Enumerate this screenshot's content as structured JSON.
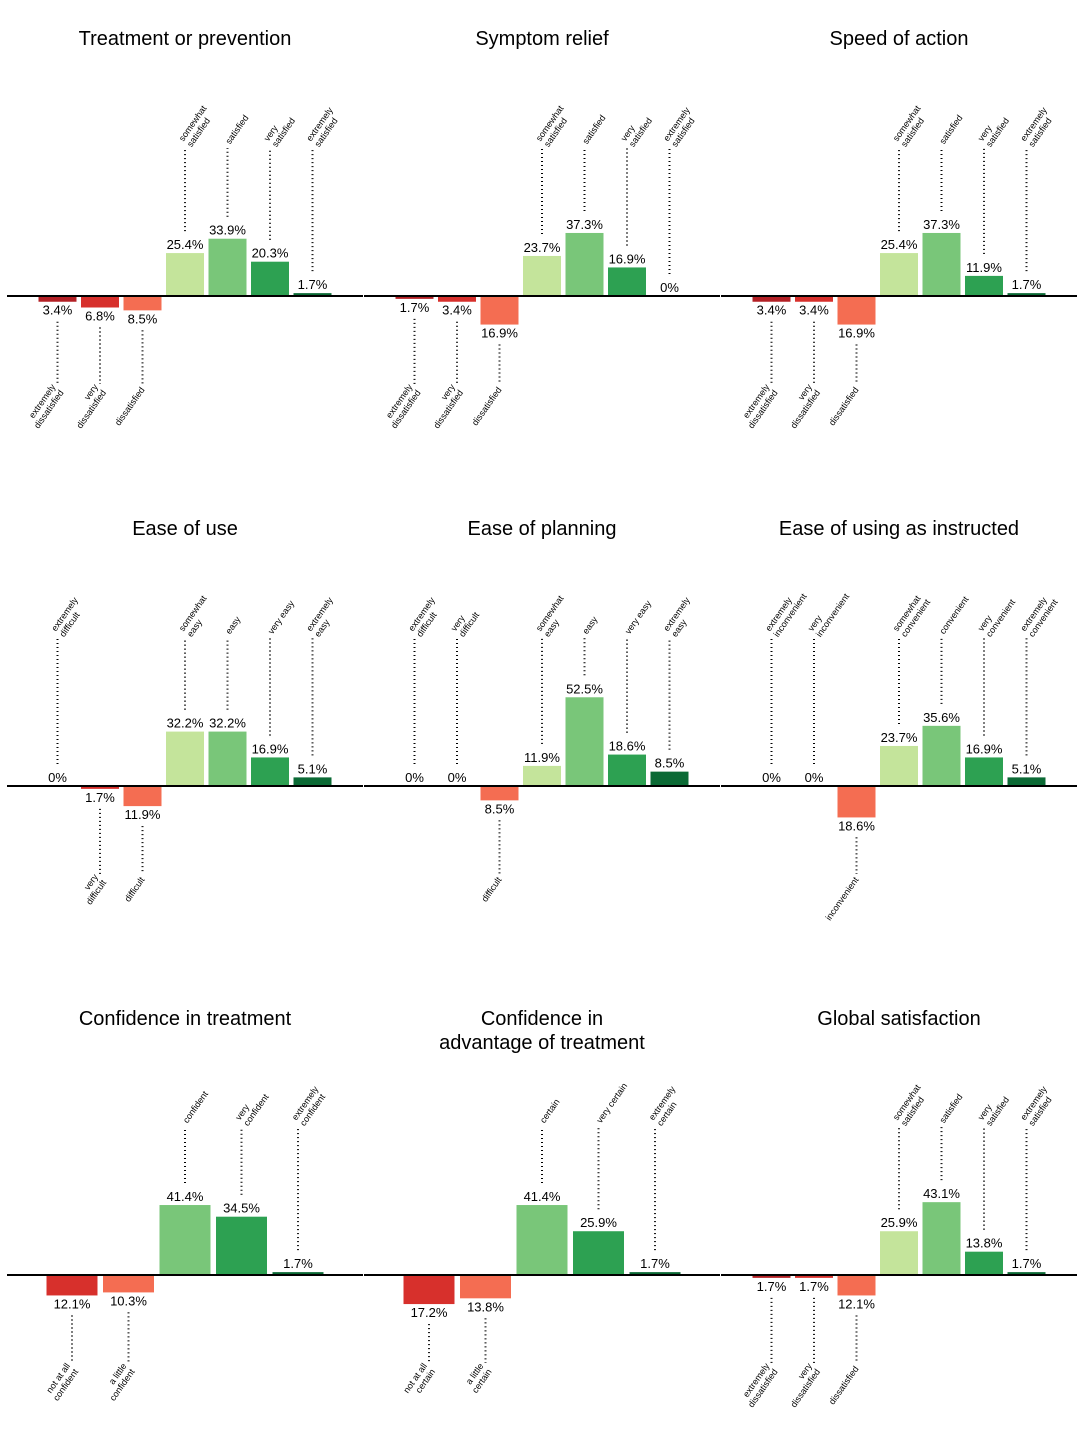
{
  "colors": {
    "dark_red": "#b32025",
    "red": "#d7302c",
    "orange": "#f46d52",
    "light_green": "#c4e49b",
    "green": "#79c679",
    "mid_green": "#2da152",
    "dark_green": "#0b6a35",
    "axis": "#000000"
  },
  "chart_data": [
    {
      "type": "bar",
      "title": [
        "Treatment or prevention"
      ],
      "ylim": [
        -20,
        55
      ],
      "categories": [
        [
          "extremely",
          "dissatisfied"
        ],
        [
          "very",
          "dissatisfied"
        ],
        [
          "dissatisfied"
        ],
        [
          "somewhat",
          "satisfied"
        ],
        [
          "satisfied"
        ],
        [
          "very",
          "satisfied"
        ],
        [
          "extremely",
          "satisfied"
        ]
      ],
      "values": [
        -3.4,
        -6.8,
        -8.5,
        25.4,
        33.9,
        20.3,
        1.7
      ],
      "labels": [
        "3.4%",
        "6.8%",
        "8.5%",
        "25.4%",
        "33.9%",
        "20.3%",
        "1.7%"
      ],
      "colors": [
        "#b32025",
        "#d7302c",
        "#f46d52",
        "#c4e49b",
        "#79c679",
        "#2da152",
        "#0b6a35"
      ]
    },
    {
      "type": "bar",
      "title": [
        "Symptom relief"
      ],
      "ylim": [
        -20,
        55
      ],
      "categories": [
        [
          "extremely",
          "dissatisfied"
        ],
        [
          "very",
          "dissatisfied"
        ],
        [
          "dissatisfied"
        ],
        [
          "somewhat",
          "satisfied"
        ],
        [
          "satisfied"
        ],
        [
          "very",
          "satisfied"
        ],
        [
          "extremely",
          "satisfied"
        ]
      ],
      "values": [
        -1.7,
        -3.4,
        -16.9,
        23.7,
        37.3,
        16.9,
        0
      ],
      "labels": [
        "1.7%",
        "3.4%",
        "16.9%",
        "23.7%",
        "37.3%",
        "16.9%",
        "0%"
      ],
      "colors": [
        "#b32025",
        "#d7302c",
        "#f46d52",
        "#c4e49b",
        "#79c679",
        "#2da152",
        "#0b6a35"
      ]
    },
    {
      "type": "bar",
      "title": [
        "Speed of action"
      ],
      "ylim": [
        -20,
        55
      ],
      "categories": [
        [
          "extremely",
          "dissatisfied"
        ],
        [
          "very",
          "dissatisfied"
        ],
        [
          "dissatisfied"
        ],
        [
          "somewhat",
          "satisfied"
        ],
        [
          "satisfied"
        ],
        [
          "very",
          "satisfied"
        ],
        [
          "extremely",
          "satisfied"
        ]
      ],
      "values": [
        -3.4,
        -3.4,
        -16.9,
        25.4,
        37.3,
        11.9,
        1.7
      ],
      "labels": [
        "3.4%",
        "3.4%",
        "16.9%",
        "25.4%",
        "37.3%",
        "11.9%",
        "1.7%"
      ],
      "colors": [
        "#b32025",
        "#d7302c",
        "#f46d52",
        "#c4e49b",
        "#79c679",
        "#2da152",
        "#0b6a35"
      ]
    },
    {
      "type": "bar",
      "title": [
        "Ease of use"
      ],
      "ylim": [
        -20,
        55
      ],
      "categories": [
        [
          "extremely",
          "difficult"
        ],
        [
          "very",
          "difficult"
        ],
        [
          "difficult"
        ],
        [
          "somewhat",
          "easy"
        ],
        [
          "easy"
        ],
        [
          "very easy"
        ],
        [
          "extremely",
          "easy"
        ]
      ],
      "values": [
        0,
        -1.7,
        -11.9,
        32.2,
        32.2,
        16.9,
        5.1
      ],
      "labels": [
        "0%",
        "1.7%",
        "11.9%",
        "32.2%",
        "32.2%",
        "16.9%",
        "5.1%"
      ],
      "colors": [
        "#b32025",
        "#d7302c",
        "#f46d52",
        "#c4e49b",
        "#79c679",
        "#2da152",
        "#0b6a35"
      ]
    },
    {
      "type": "bar",
      "title": [
        "Ease of planning"
      ],
      "ylim": [
        -20,
        55
      ],
      "categories": [
        [
          "extremely",
          "difficult"
        ],
        [
          "very",
          "difficult"
        ],
        [
          "difficult"
        ],
        [
          "somewhat",
          "easy"
        ],
        [
          "easy"
        ],
        [
          "very easy"
        ],
        [
          "extremely",
          "easy"
        ]
      ],
      "values": [
        0,
        0,
        -8.5,
        11.9,
        52.5,
        18.6,
        8.5
      ],
      "labels": [
        "0%",
        "0%",
        "8.5%",
        "11.9%",
        "52.5%",
        "18.6%",
        "8.5%"
      ],
      "colors": [
        "#b32025",
        "#d7302c",
        "#f46d52",
        "#c4e49b",
        "#79c679",
        "#2da152",
        "#0b6a35"
      ]
    },
    {
      "type": "bar",
      "title": [
        "Ease of using as instructed"
      ],
      "ylim": [
        -20,
        55
      ],
      "categories": [
        [
          "extremely",
          "inconvenient"
        ],
        [
          "very",
          "inconvenient"
        ],
        [
          "inconvenient"
        ],
        [
          "somewhat",
          "convenient"
        ],
        [
          "convenient"
        ],
        [
          "very",
          "convenient"
        ],
        [
          "extremely",
          "convenient"
        ]
      ],
      "values": [
        0,
        0,
        -18.6,
        23.7,
        35.6,
        16.9,
        5.1
      ],
      "labels": [
        "0%",
        "0%",
        "18.6%",
        "23.7%",
        "35.6%",
        "16.9%",
        "5.1%"
      ],
      "colors": [
        "#b32025",
        "#d7302c",
        "#f46d52",
        "#c4e49b",
        "#79c679",
        "#2da152",
        "#0b6a35"
      ]
    },
    {
      "type": "bar",
      "title": [
        "Confidence in treatment"
      ],
      "ylim": [
        -20,
        55
      ],
      "categories": [
        [
          "not at all",
          "confident"
        ],
        [
          "a little",
          "confident"
        ],
        [
          "confident"
        ],
        [
          "very",
          "confident"
        ],
        [
          "extremely",
          "confident"
        ]
      ],
      "values": [
        -12.1,
        -10.3,
        41.4,
        34.5,
        1.7
      ],
      "labels": [
        "12.1%",
        "10.3%",
        "41.4%",
        "34.5%",
        "1.7%"
      ],
      "colors": [
        "#d7302c",
        "#f46d52",
        "#79c679",
        "#2da152",
        "#0b6a35"
      ]
    },
    {
      "type": "bar",
      "title": [
        "Confidence in",
        "advantage of treatment"
      ],
      "ylim": [
        -20,
        55
      ],
      "categories": [
        [
          "not at all",
          "certain"
        ],
        [
          "a little",
          "certain"
        ],
        [
          "certain"
        ],
        [
          "very certain"
        ],
        [
          "extremely",
          "certain"
        ]
      ],
      "values": [
        -17.2,
        -13.8,
        41.4,
        25.9,
        1.7
      ],
      "labels": [
        "17.2%",
        "13.8%",
        "41.4%",
        "25.9%",
        "1.7%"
      ],
      "colors": [
        "#d7302c",
        "#f46d52",
        "#79c679",
        "#2da152",
        "#0b6a35"
      ]
    },
    {
      "type": "bar",
      "title": [
        "Global satisfaction"
      ],
      "ylim": [
        -20,
        55
      ],
      "categories": [
        [
          "extremely",
          "dissatisfied"
        ],
        [
          "very",
          "dissatisfied"
        ],
        [
          "dissatisfied"
        ],
        [
          "somewhat",
          "satisfied"
        ],
        [
          "satisfied"
        ],
        [
          "very",
          "satisfied"
        ],
        [
          "extremely",
          "satisfied"
        ]
      ],
      "values": [
        -1.7,
        -1.7,
        -12.1,
        25.9,
        43.1,
        13.8,
        1.7
      ],
      "labels": [
        "1.7%",
        "1.7%",
        "12.1%",
        "25.9%",
        "43.1%",
        "13.8%",
        "1.7%"
      ],
      "colors": [
        "#b32025",
        "#d7302c",
        "#f46d52",
        "#c4e49b",
        "#79c679",
        "#2da152",
        "#0b6a35"
      ]
    }
  ]
}
